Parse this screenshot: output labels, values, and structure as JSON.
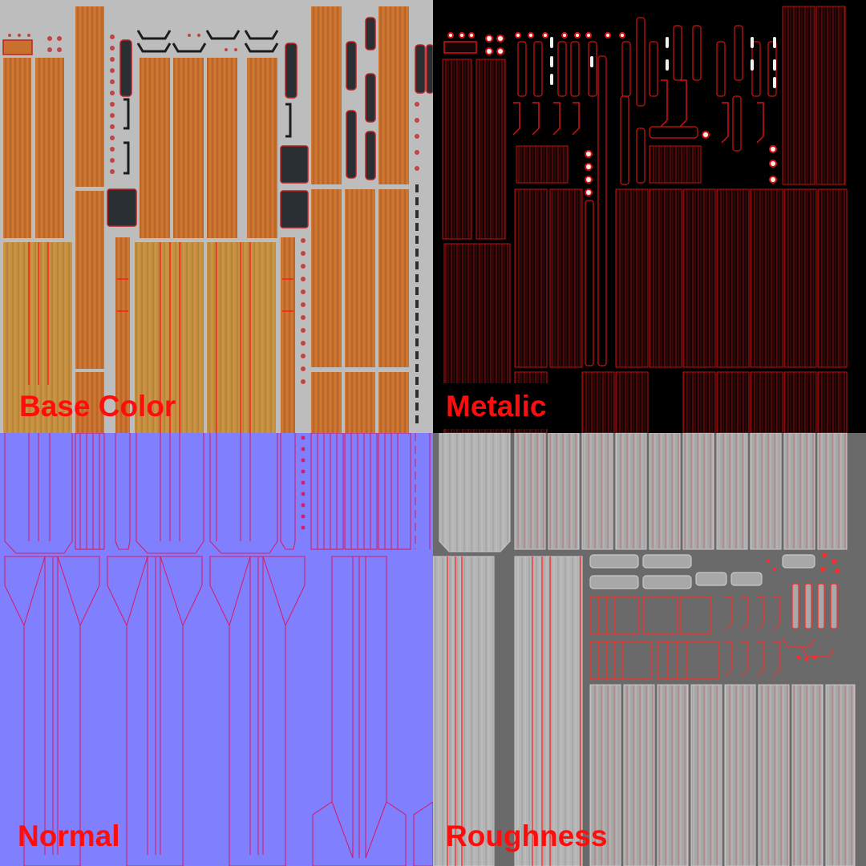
{
  "maps": {
    "base_color": {
      "label": "Base Color",
      "background": "#bdbdbd",
      "wood": "#c8702e",
      "wood_light": "#c49040",
      "uv_line": "#ff1a1a"
    },
    "metalic": {
      "label": "Metalic",
      "background": "#000000",
      "uv_line": "#d81010"
    },
    "normal": {
      "label": "Normal",
      "background": "#8080ff",
      "uv_line": "#e0204a"
    },
    "roughness": {
      "label": "Roughness",
      "background": "#6a6a6a",
      "plank": "#a8a8a8",
      "uv_line": "#ff2a2a"
    }
  }
}
